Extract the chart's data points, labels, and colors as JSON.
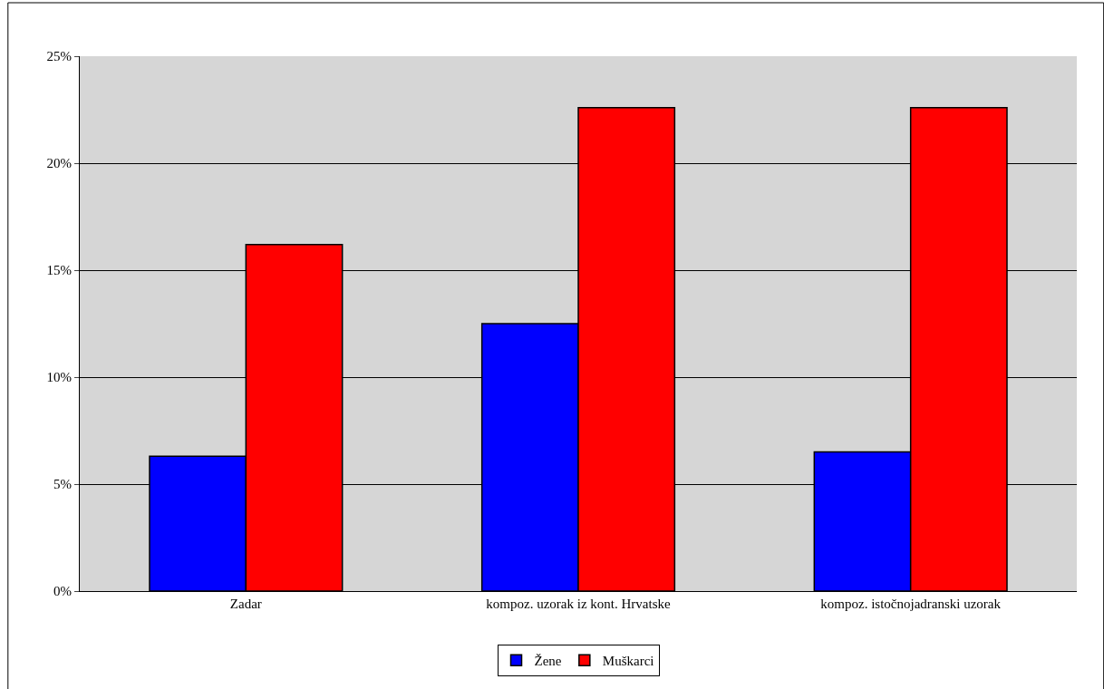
{
  "chart_data": {
    "type": "bar",
    "categories": [
      "Zadar",
      "kompoz. uzorak iz kont. Hrvatske",
      "kompoz. istočnojadranski uzorak"
    ],
    "series": [
      {
        "name": "Žene",
        "color": "#0000ff",
        "values": [
          6.3,
          12.5,
          6.5
        ]
      },
      {
        "name": "Muškarci",
        "color": "#ff0000",
        "values": [
          16.2,
          22.6,
          22.6
        ]
      }
    ],
    "ylim": [
      0,
      25
    ],
    "yticks": [
      {
        "value": 0,
        "label": "0%"
      },
      {
        "value": 5,
        "label": "5%"
      },
      {
        "value": 10,
        "label": "10%"
      },
      {
        "value": 15,
        "label": "15%"
      },
      {
        "value": 20,
        "label": "20%"
      },
      {
        "value": 25,
        "label": "25%"
      }
    ],
    "grid": "y",
    "legend": "bottom"
  }
}
